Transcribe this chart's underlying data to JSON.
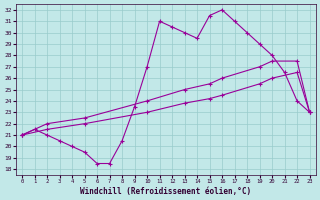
{
  "xlabel": "Windchill (Refroidissement éolien,°C)",
  "xlim": [
    -0.5,
    23.5
  ],
  "ylim": [
    17.5,
    32.5
  ],
  "xticks": [
    0,
    1,
    2,
    3,
    4,
    5,
    6,
    7,
    8,
    9,
    10,
    11,
    12,
    13,
    14,
    15,
    16,
    17,
    18,
    19,
    20,
    21,
    22,
    23
  ],
  "yticks": [
    18,
    19,
    20,
    21,
    22,
    23,
    24,
    25,
    26,
    27,
    28,
    29,
    30,
    31,
    32
  ],
  "bg_color": "#c2e8e8",
  "grid_color": "#99cccc",
  "line_color": "#990099",
  "line1_x": [
    0,
    1,
    2,
    3,
    4,
    5,
    6,
    7,
    8,
    9,
    10,
    11,
    12,
    13,
    14,
    15,
    16,
    17,
    18,
    19,
    20,
    21,
    22,
    23
  ],
  "line1_y": [
    21.0,
    21.5,
    21.0,
    20.5,
    20.0,
    19.5,
    18.5,
    18.5,
    20.5,
    23.5,
    27.0,
    31.0,
    30.5,
    30.0,
    29.5,
    31.5,
    32.0,
    31.0,
    30.0,
    29.0,
    28.0,
    26.5,
    24.0,
    23.0
  ],
  "line2_x": [
    0,
    2,
    5,
    10,
    13,
    15,
    16,
    19,
    20,
    22,
    23
  ],
  "line2_y": [
    21.0,
    22.0,
    22.5,
    24.0,
    25.0,
    25.5,
    26.0,
    27.0,
    27.5,
    27.5,
    23.0
  ],
  "line3_x": [
    0,
    2,
    5,
    10,
    13,
    15,
    16,
    19,
    20,
    22,
    23
  ],
  "line3_y": [
    21.0,
    21.5,
    22.0,
    23.0,
    23.8,
    24.2,
    24.5,
    25.5,
    26.0,
    26.5,
    23.0
  ]
}
